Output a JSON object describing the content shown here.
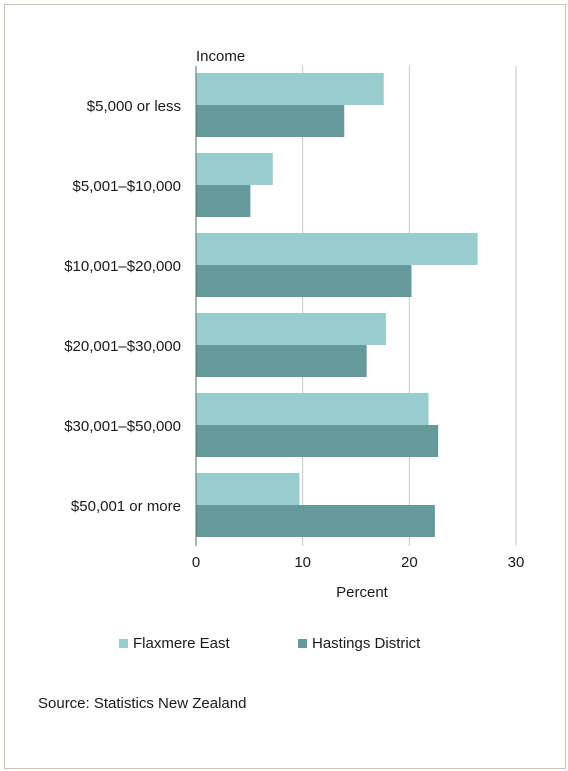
{
  "chart_data": {
    "type": "bar",
    "orientation": "horizontal",
    "ylabel": "Income",
    "xlabel": "Percent",
    "categories": [
      "$5,000 or less",
      "$5,001–$10,000",
      "$10,001–$20,000",
      "$20,001–$30,000",
      "$30,001–$50,000",
      "$50,001 or more"
    ],
    "series": [
      {
        "name": "Flaxmere East",
        "color": "#99cccc",
        "values": [
          17.6,
          7.2,
          26.4,
          17.8,
          21.8,
          9.7
        ]
      },
      {
        "name": "Hastings District",
        "color": "#669999",
        "values": [
          13.9,
          5.1,
          20.2,
          16.0,
          22.7,
          22.4
        ]
      }
    ],
    "xlim": [
      0,
      30
    ],
    "xticks": [
      0,
      10,
      20,
      30
    ],
    "grid": true,
    "legend_position": "bottom"
  },
  "source": "Source: Statistics New Zealand"
}
